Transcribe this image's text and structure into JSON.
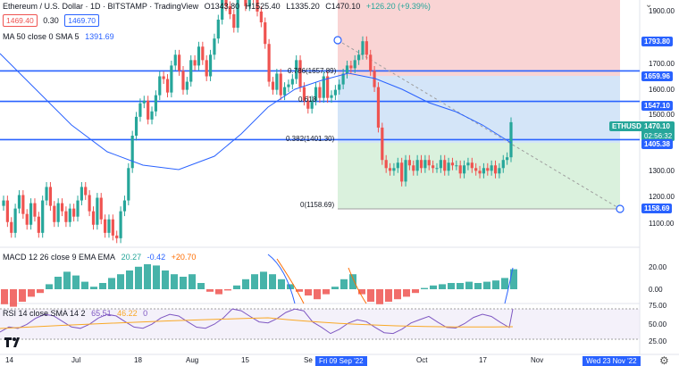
{
  "header": {
    "title": "Ethereum / U.S. Dollar · 1D · BITSTAMP · TradingView",
    "ohlc": {
      "o": "O1343.80",
      "h": "H1525.40",
      "l": "L1335.20",
      "c": "C1470.10",
      "chg": "+126.20 (+9.39%)"
    },
    "bid": "1469.40",
    "spread": "0.30",
    "ask": "1469.70"
  },
  "ma_legend": {
    "label": "MA 50 close 0 SMA 5",
    "value": "1391.69"
  },
  "macd_legend": {
    "label": "MACD 12 26 close 9 EMA EMA",
    "v1": "20.27",
    "v2": "-0.42",
    "v3": "+20.70"
  },
  "rsi_legend": {
    "label": "RSI 14 close SMA 14 2",
    "v1": "65.51",
    "v2": "46.22",
    "v3": "0"
  },
  "fib_labels": {
    "f786": "0.786(1657.89)",
    "f618": "0.618",
    "f382": "0.382(1401.30)",
    "f0": "0(1158.69)"
  },
  "price_axis": [
    "1900.00",
    "1700.00",
    "1600.00",
    "1500.00",
    "1300.00",
    "1200.00",
    "1100.00"
  ],
  "price_tags": {
    "t1793": "1793.80",
    "t1659": "1659.96",
    "t1547": "1547.10",
    "sym": "ETHUSD",
    "last": "1470.10",
    "countdown": "02:56:32",
    "t1405": "1405.38",
    "t1158": "1158.69"
  },
  "macd_axis": [
    "20.00",
    "0.00"
  ],
  "rsi_axis": [
    "75.00",
    "50.00",
    "25.00"
  ],
  "time_axis": [
    "14",
    "Jul",
    "18",
    "Aug",
    "15",
    "Se",
    "Oct",
    "17",
    "Nov"
  ],
  "date_tags": {
    "start": "Fri 09 Sep '22",
    "end": "Wed 23 Nov '22"
  },
  "colors": {
    "up": "#26a69a",
    "down": "#ef5350",
    "level": "#2962ff",
    "ma": "#2962ff",
    "macd": "#2962ff",
    "signal": "#ff6d00",
    "rsi": "#7e57c2"
  },
  "icons": [
    "settings-icon",
    "gear-icon",
    "tradingview-logo"
  ]
}
